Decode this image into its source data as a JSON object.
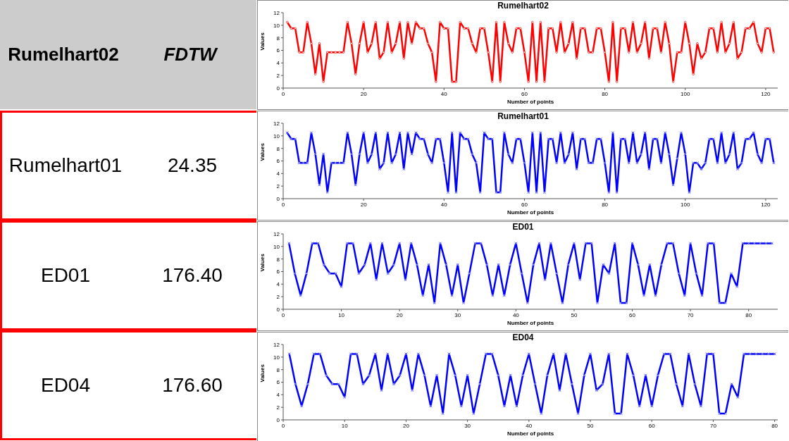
{
  "chart_data": [
    {
      "type": "other",
      "title": "Rumelhart02",
      "subtitle": "FDTW",
      "categories": [
        "Rumelhart01",
        "ED01",
        "ED04"
      ],
      "annotations": [
        "24.35",
        "176.40",
        "176.60"
      ]
    },
    {
      "type": "line",
      "title": "Rumelhart02",
      "xlabel": "Number of points",
      "ylabel": "Values",
      "color": "#ff0000",
      "marker": "circle",
      "xlim": [
        0,
        123
      ],
      "xticks": [
        0,
        20,
        40,
        60,
        80,
        100,
        120
      ],
      "ylim": [
        0,
        12
      ],
      "yticks": [
        0,
        2,
        4,
        6,
        8,
        10,
        12
      ],
      "x": [
        1,
        2,
        3,
        4,
        5,
        6,
        7,
        8,
        9,
        10,
        11,
        12,
        13,
        14,
        15,
        16,
        17,
        18,
        19,
        20,
        21,
        22,
        23,
        24,
        25,
        26,
        27,
        28,
        29,
        30,
        31,
        32,
        33,
        34,
        35,
        36,
        37,
        38,
        39,
        40,
        41,
        42,
        43,
        44,
        45,
        46,
        47,
        48,
        49,
        50,
        51,
        52,
        53,
        54,
        55,
        56,
        57,
        58,
        59,
        60,
        61,
        62,
        63,
        64,
        65,
        66,
        67,
        68,
        69,
        70,
        71,
        72,
        73,
        74,
        75,
        76,
        77,
        78,
        79,
        80,
        81,
        82,
        83,
        84,
        85,
        86,
        87,
        88,
        89,
        90,
        91,
        92,
        93,
        94,
        95,
        96,
        97,
        98,
        99,
        100,
        101,
        102,
        103,
        104,
        105,
        106,
        107,
        108,
        109,
        110,
        111,
        112,
        113,
        114,
        115,
        116,
        117,
        118,
        119,
        120,
        121,
        122
      ],
      "values": [
        10.5,
        9.5,
        9.5,
        5.7,
        5.7,
        10.5,
        7.1,
        2.2,
        7.1,
        1.0,
        5.7,
        5.7,
        5.7,
        5.7,
        5.7,
        10.5,
        7.1,
        2.2,
        7.1,
        10.5,
        5.7,
        7.1,
        10.5,
        4.7,
        5.7,
        10.5,
        5.7,
        7.1,
        10.5,
        4.7,
        10.5,
        7.1,
        10.5,
        9.5,
        9.5,
        7.1,
        5.7,
        1.0,
        10.5,
        9.5,
        9.5,
        1.0,
        1.0,
        10.5,
        9.5,
        9.5,
        7.1,
        5.7,
        9.5,
        9.5,
        5.7,
        1.0,
        10.5,
        1.0,
        10.5,
        7.1,
        5.7,
        9.5,
        9.5,
        5.7,
        1.0,
        10.5,
        1.0,
        10.5,
        1.0,
        9.5,
        9.5,
        5.7,
        10.5,
        5.7,
        7.1,
        10.5,
        4.7,
        9.5,
        9.5,
        5.7,
        5.7,
        9.5,
        9.5,
        5.7,
        1.0,
        10.5,
        1.0,
        9.5,
        9.5,
        5.7,
        10.5,
        5.7,
        7.1,
        10.5,
        4.7,
        9.5,
        9.5,
        5.7,
        10.5,
        7.1,
        1.0,
        5.7,
        5.7,
        10.5,
        7.1,
        2.2,
        7.1,
        4.7,
        5.7,
        9.5,
        9.5,
        5.7,
        10.5,
        5.7,
        7.1,
        10.5,
        4.7,
        5.7,
        9.5,
        9.5,
        10.5,
        7.1,
        5.7,
        9.5,
        9.5,
        5.7
      ]
    },
    {
      "type": "line",
      "title": "Rumelhart01",
      "xlabel": "Number of points",
      "ylabel": "Values",
      "color": "#0000ff",
      "marker": "cross",
      "xlim": [
        0,
        123
      ],
      "xticks": [
        0,
        20,
        40,
        60,
        80,
        100,
        120
      ],
      "ylim": [
        0,
        12
      ],
      "yticks": [
        0,
        2,
        4,
        6,
        8,
        10,
        12
      ],
      "x": [
        1,
        2,
        3,
        4,
        5,
        6,
        7,
        8,
        9,
        10,
        11,
        12,
        13,
        14,
        15,
        16,
        17,
        18,
        19,
        20,
        21,
        22,
        23,
        24,
        25,
        26,
        27,
        28,
        29,
        30,
        31,
        32,
        33,
        34,
        35,
        36,
        37,
        38,
        39,
        40,
        41,
        42,
        43,
        44,
        45,
        46,
        47,
        48,
        49,
        50,
        51,
        52,
        53,
        54,
        55,
        56,
        57,
        58,
        59,
        60,
        61,
        62,
        63,
        64,
        65,
        66,
        67,
        68,
        69,
        70,
        71,
        72,
        73,
        74,
        75,
        76,
        77,
        78,
        79,
        80,
        81,
        82,
        83,
        84,
        85,
        86,
        87,
        88,
        89,
        90,
        91,
        92,
        93,
        94,
        95,
        96,
        97,
        98,
        99,
        100,
        101,
        102,
        103,
        104,
        105,
        106,
        107,
        108,
        109,
        110,
        111,
        112,
        113,
        114,
        115,
        116,
        117,
        118,
        119,
        120,
        121,
        122
      ],
      "values": [
        10.5,
        9.5,
        9.5,
        5.7,
        5.7,
        5.7,
        10.5,
        7.1,
        2.2,
        7.1,
        1.0,
        5.7,
        5.7,
        5.7,
        5.7,
        10.5,
        7.1,
        2.2,
        7.1,
        10.5,
        5.7,
        7.1,
        10.5,
        4.7,
        5.7,
        10.5,
        5.7,
        7.1,
        10.5,
        4.7,
        10.5,
        7.1,
        10.5,
        9.5,
        9.5,
        7.1,
        5.7,
        9.5,
        9.5,
        5.7,
        1.0,
        10.5,
        1.0,
        10.5,
        9.5,
        9.5,
        7.1,
        5.7,
        1.0,
        10.5,
        9.5,
        9.5,
        1.0,
        1.0,
        10.5,
        7.1,
        5.7,
        9.5,
        9.5,
        5.7,
        1.0,
        10.5,
        1.0,
        10.5,
        1.0,
        9.5,
        9.5,
        5.7,
        10.5,
        5.7,
        7.1,
        10.5,
        4.7,
        9.5,
        9.5,
        5.7,
        5.7,
        9.5,
        9.5,
        5.7,
        1.0,
        10.5,
        1.0,
        9.5,
        9.5,
        5.7,
        10.5,
        5.7,
        7.1,
        10.5,
        4.7,
        9.5,
        9.5,
        5.7,
        10.5,
        7.1,
        2.2,
        6.4,
        10.5,
        7.1,
        1.0,
        5.7,
        5.7,
        4.7,
        5.7,
        9.5,
        9.5,
        5.7,
        10.5,
        5.7,
        7.1,
        10.5,
        4.7,
        5.7,
        9.5,
        9.5,
        10.5,
        7.1,
        5.7,
        9.5,
        9.5,
        5.7
      ]
    },
    {
      "type": "line",
      "title": "ED01",
      "xlabel": "Number of points",
      "ylabel": "Values",
      "color": "#0000ff",
      "marker": "cross",
      "xlim": [
        0,
        85
      ],
      "xticks": [
        0,
        10,
        20,
        30,
        40,
        50,
        60,
        70,
        80
      ],
      "ylim": [
        0,
        12
      ],
      "yticks": [
        0,
        2,
        4,
        6,
        8,
        10,
        12
      ],
      "x": [
        1,
        2,
        3,
        4,
        5,
        6,
        7,
        8,
        9,
        10,
        11,
        12,
        13,
        14,
        15,
        16,
        17,
        18,
        19,
        20,
        21,
        22,
        23,
        24,
        25,
        26,
        27,
        28,
        29,
        30,
        31,
        32,
        33,
        34,
        35,
        36,
        37,
        38,
        39,
        40,
        41,
        42,
        43,
        44,
        45,
        46,
        47,
        48,
        49,
        50,
        51,
        52,
        53,
        54,
        55,
        56,
        57,
        58,
        59,
        60,
        61,
        62,
        63,
        64,
        65,
        66,
        67,
        68,
        69,
        70,
        71,
        72,
        73,
        74,
        75,
        76,
        77,
        78,
        79,
        80,
        81,
        82,
        83,
        84
      ],
      "values": [
        10.5,
        5.7,
        2.2,
        5.7,
        10.5,
        10.5,
        7.1,
        5.7,
        5.7,
        3.6,
        10.5,
        10.5,
        5.7,
        7.1,
        10.5,
        4.7,
        10.5,
        5.7,
        7.1,
        10.5,
        4.7,
        10.5,
        7.1,
        2.2,
        7.1,
        1.0,
        10.5,
        7.1,
        2.2,
        7.1,
        1.0,
        5.7,
        10.5,
        10.5,
        7.1,
        2.2,
        7.1,
        2.2,
        7.1,
        10.5,
        5.7,
        1.0,
        7.1,
        10.5,
        4.7,
        10.5,
        5.7,
        1.0,
        7.1,
        10.5,
        4.7,
        10.5,
        10.5,
        1.0,
        7.1,
        5.7,
        10.5,
        1.0,
        1.0,
        10.5,
        7.1,
        2.2,
        7.1,
        2.2,
        7.1,
        10.5,
        10.5,
        5.7,
        2.2,
        10.5,
        5.7,
        2.2,
        10.5,
        10.5,
        1.0,
        1.0,
        5.7,
        3.6,
        10.5,
        10.5,
        10.5,
        10.5,
        10.5,
        10.5
      ]
    },
    {
      "type": "line",
      "title": "ED04",
      "xlabel": "Number of points",
      "ylabel": "Values",
      "color": "#0000ff",
      "marker": "cross",
      "xlim": [
        0,
        80.5
      ],
      "xticks": [
        0,
        10,
        20,
        30,
        40,
        50,
        60,
        70,
        80
      ],
      "ylim": [
        0,
        12
      ],
      "yticks": [
        0,
        2,
        4,
        6,
        8,
        10,
        12
      ],
      "x": [
        1,
        2,
        3,
        4,
        5,
        6,
        7,
        8,
        9,
        10,
        11,
        12,
        13,
        14,
        15,
        16,
        17,
        18,
        19,
        20,
        21,
        22,
        23,
        24,
        25,
        26,
        27,
        28,
        29,
        30,
        31,
        32,
        33,
        34,
        35,
        36,
        37,
        38,
        39,
        40,
        41,
        42,
        43,
        44,
        45,
        46,
        47,
        48,
        49,
        50,
        51,
        52,
        53,
        54,
        55,
        56,
        57,
        58,
        59,
        60,
        61,
        62,
        63,
        64,
        65,
        66,
        67,
        68,
        69,
        70,
        71,
        72,
        73,
        74,
        75,
        76,
        77,
        78,
        79,
        80
      ],
      "values": [
        10.5,
        5.7,
        2.2,
        5.7,
        10.5,
        10.5,
        7.1,
        5.7,
        5.7,
        3.6,
        10.5,
        10.5,
        5.7,
        7.1,
        10.5,
        4.7,
        10.5,
        5.7,
        7.1,
        10.5,
        4.7,
        10.5,
        7.1,
        2.2,
        7.1,
        1.0,
        10.5,
        7.1,
        2.2,
        7.1,
        1.0,
        5.7,
        10.5,
        10.5,
        7.1,
        2.2,
        7.1,
        2.2,
        7.1,
        10.5,
        5.7,
        1.0,
        7.1,
        10.5,
        4.7,
        10.5,
        5.7,
        1.0,
        7.1,
        10.5,
        4.7,
        5.7,
        10.5,
        1.0,
        1.0,
        10.5,
        7.1,
        2.2,
        7.1,
        2.2,
        7.1,
        10.5,
        10.5,
        5.7,
        2.2,
        10.5,
        5.7,
        2.2,
        10.5,
        10.5,
        1.0,
        1.0,
        5.7,
        3.6,
        10.5,
        10.5,
        10.5,
        10.5,
        10.5,
        10.5
      ]
    }
  ]
}
